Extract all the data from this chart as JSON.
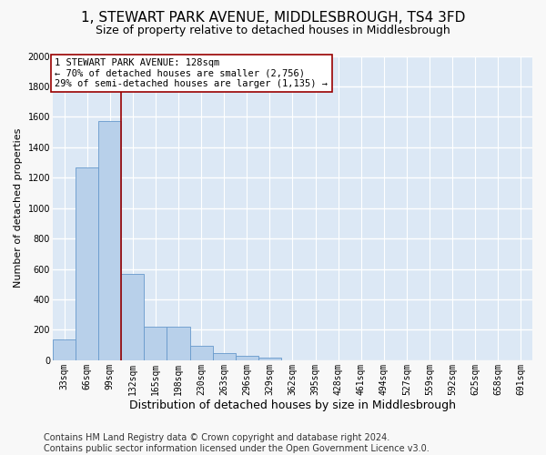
{
  "title": "1, STEWART PARK AVENUE, MIDDLESBROUGH, TS4 3FD",
  "subtitle": "Size of property relative to detached houses in Middlesbrough",
  "xlabel": "Distribution of detached houses by size in Middlesbrough",
  "ylabel": "Number of detached properties",
  "footer_line1": "Contains HM Land Registry data © Crown copyright and database right 2024.",
  "footer_line2": "Contains public sector information licensed under the Open Government Licence v3.0.",
  "bin_labels": [
    "33sqm",
    "66sqm",
    "99sqm",
    "132sqm",
    "165sqm",
    "198sqm",
    "230sqm",
    "263sqm",
    "296sqm",
    "329sqm",
    "362sqm",
    "395sqm",
    "428sqm",
    "461sqm",
    "494sqm",
    "527sqm",
    "559sqm",
    "592sqm",
    "625sqm",
    "658sqm",
    "691sqm"
  ],
  "bar_values": [
    140,
    1265,
    1575,
    565,
    220,
    220,
    95,
    50,
    28,
    18,
    0,
    0,
    0,
    0,
    0,
    0,
    0,
    0,
    0,
    0,
    0
  ],
  "bar_color": "#b8d0ea",
  "bar_edgecolor": "#6699cc",
  "vline_color": "#990000",
  "vline_x": 2.5,
  "annotation_text": "1 STEWART PARK AVENUE: 128sqm\n← 70% of detached houses are smaller (2,756)\n29% of semi-detached houses are larger (1,135) →",
  "annotation_box_edgecolor": "#990000",
  "ylim": [
    0,
    2000
  ],
  "yticks": [
    0,
    200,
    400,
    600,
    800,
    1000,
    1200,
    1400,
    1600,
    1800,
    2000
  ],
  "plot_bgcolor": "#dce8f5",
  "fig_bgcolor": "#f8f8f8",
  "grid_color": "#ffffff",
  "title_fontsize": 11,
  "subtitle_fontsize": 9,
  "xlabel_fontsize": 9,
  "ylabel_fontsize": 8,
  "tick_fontsize": 7,
  "annot_fontsize": 7.5,
  "footer_fontsize": 7
}
